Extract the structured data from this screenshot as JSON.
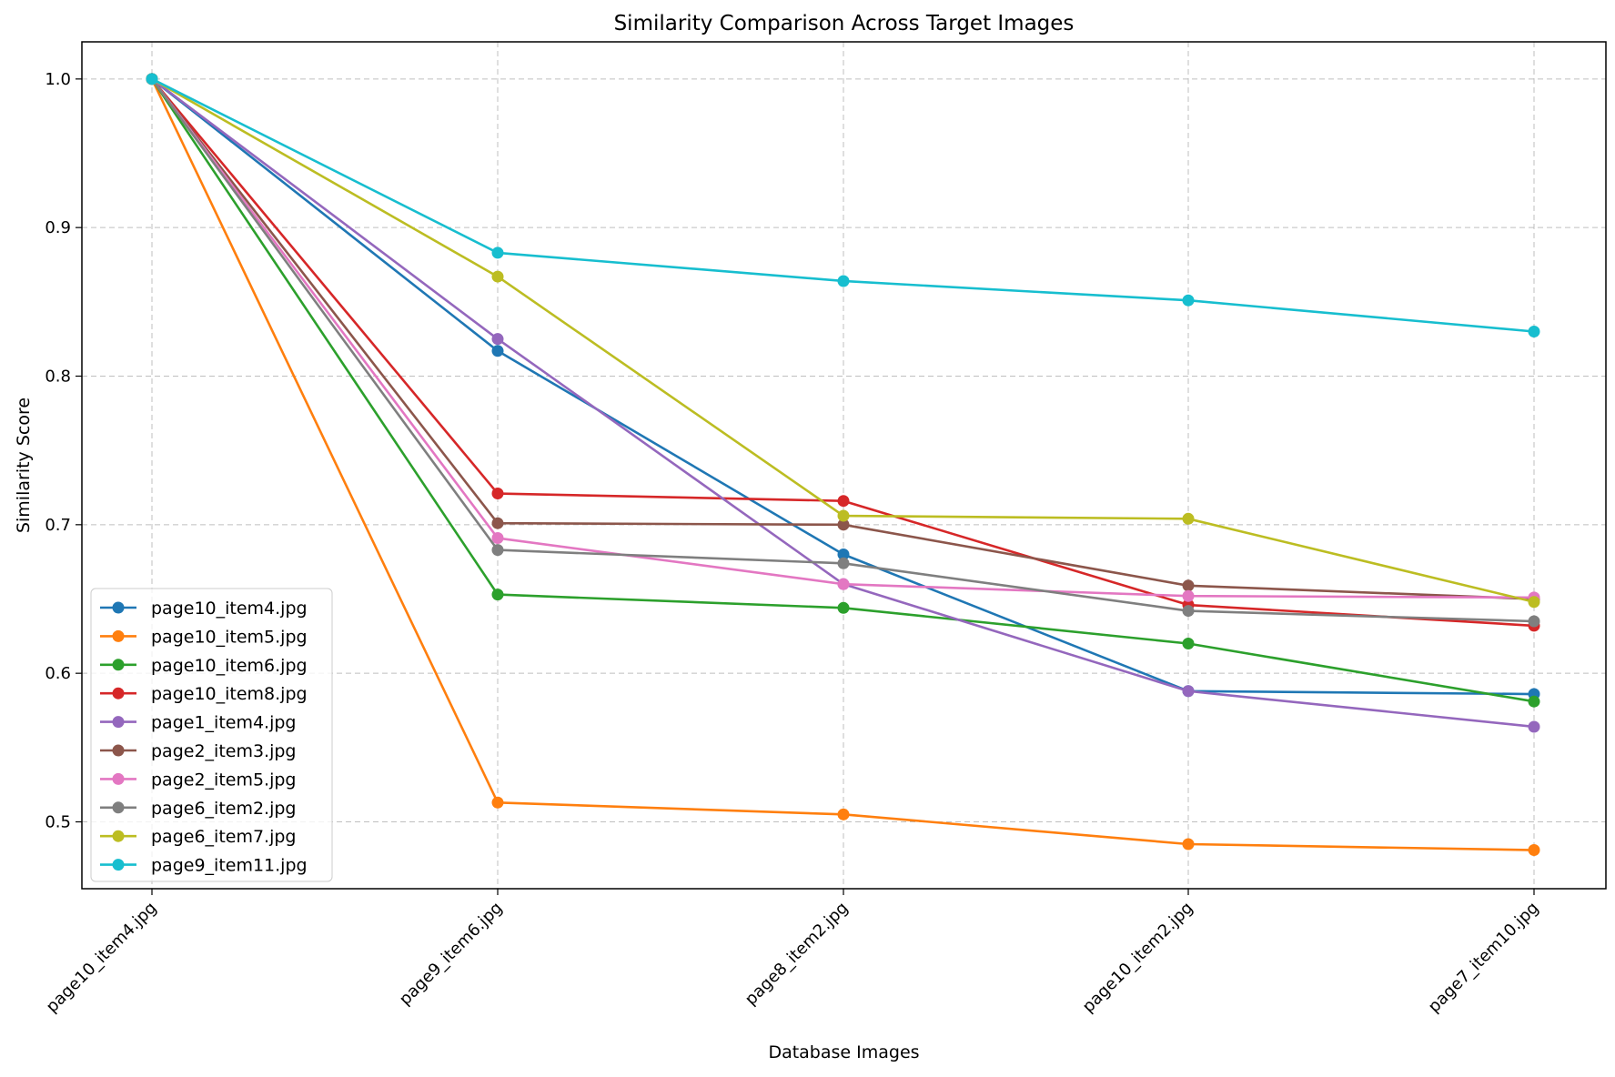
{
  "chart_data": {
    "type": "line",
    "title": "Similarity Comparison Across Target Images",
    "xlabel": "Database Images",
    "ylabel": "Similarity Score",
    "categories": [
      "page10_item4.jpg",
      "page9_item6.jpg",
      "page8_item2.jpg",
      "page10_item2.jpg",
      "page7_item10.jpg"
    ],
    "ylim": [
      0.455,
      1.025
    ],
    "yticks": [
      0.5,
      0.6,
      0.7,
      0.8,
      0.9,
      1.0
    ],
    "ytick_labels": [
      "0.5",
      "0.6",
      "0.7",
      "0.8",
      "0.9",
      "1.0"
    ],
    "grid": true,
    "legend_position": "lower-left",
    "series": [
      {
        "name": "page10_item4.jpg",
        "color": "#1f77b4",
        "values": [
          1.0,
          0.817,
          0.68,
          0.588,
          0.586
        ]
      },
      {
        "name": "page10_item5.jpg",
        "color": "#ff7f0e",
        "values": [
          1.0,
          0.513,
          0.505,
          0.485,
          0.481
        ]
      },
      {
        "name": "page10_item6.jpg",
        "color": "#2ca02c",
        "values": [
          1.0,
          0.653,
          0.644,
          0.62,
          0.581
        ]
      },
      {
        "name": "page10_item8.jpg",
        "color": "#d62728",
        "values": [
          1.0,
          0.721,
          0.716,
          0.646,
          0.632
        ]
      },
      {
        "name": "page1_item4.jpg",
        "color": "#9467bd",
        "values": [
          1.0,
          0.825,
          0.66,
          0.588,
          0.564
        ]
      },
      {
        "name": "page2_item3.jpg",
        "color": "#8c564b",
        "values": [
          1.0,
          0.701,
          0.7,
          0.659,
          0.65
        ]
      },
      {
        "name": "page2_item5.jpg",
        "color": "#e377c2",
        "values": [
          1.0,
          0.691,
          0.66,
          0.652,
          0.651
        ]
      },
      {
        "name": "page6_item2.jpg",
        "color": "#7f7f7f",
        "values": [
          1.0,
          0.683,
          0.674,
          0.642,
          0.635
        ]
      },
      {
        "name": "page6_item7.jpg",
        "color": "#bcbd22",
        "values": [
          1.0,
          0.867,
          0.706,
          0.704,
          0.648
        ]
      },
      {
        "name": "page9_item11.jpg",
        "color": "#17becf",
        "values": [
          1.0,
          0.883,
          0.864,
          0.851,
          0.83
        ]
      }
    ]
  }
}
